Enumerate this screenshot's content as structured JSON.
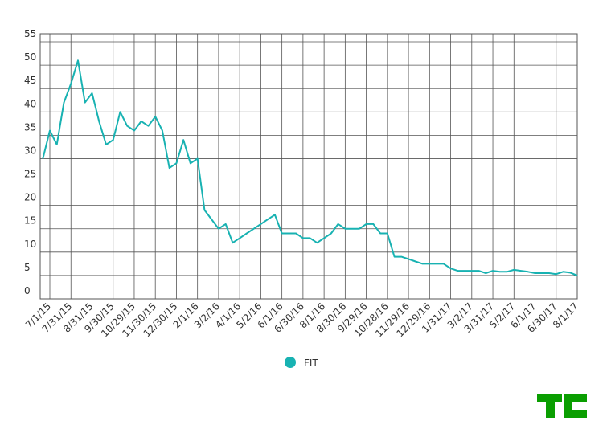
{
  "chart_data": {
    "type": "line",
    "categories": [
      null,
      "7/1/15",
      null,
      null,
      "7/31/15",
      null,
      null,
      "8/31/15",
      null,
      null,
      "9/30/15",
      null,
      null,
      "10/29/15",
      null,
      null,
      "11/30/15",
      null,
      null,
      "12/30/15",
      null,
      null,
      "2/1/16",
      null,
      null,
      "3/2/16",
      null,
      null,
      "4/1/16",
      null,
      null,
      "5/2/16",
      null,
      null,
      "6/1/16",
      null,
      null,
      "6/30/16",
      null,
      null,
      "8/1/16",
      null,
      null,
      "8/30/16",
      null,
      null,
      "9/29/16",
      null,
      null,
      "10/28/16",
      null,
      null,
      "11/29/16",
      null,
      null,
      "12/29/16",
      null,
      null,
      "1/31/17",
      null,
      null,
      "3/2/17",
      null,
      null,
      "3/31/17",
      null,
      null,
      "5/2/17",
      null,
      null,
      "6/1/17",
      null,
      null,
      "6/30/17",
      null,
      null,
      "8/1/17"
    ],
    "series": [
      {
        "name": "FIT",
        "color": "#18b2b2",
        "values": [
          30,
          36,
          33,
          42,
          46,
          51,
          42,
          44,
          38,
          33,
          34,
          40,
          37,
          36,
          38,
          37,
          39,
          36,
          28,
          29,
          34,
          29,
          30,
          19,
          17,
          15,
          16,
          12,
          13,
          14,
          15,
          16,
          17,
          18,
          14,
          14,
          14,
          13,
          13,
          12,
          13,
          14,
          16,
          15,
          15,
          15,
          16,
          16,
          14,
          14,
          9,
          9,
          8.5,
          8,
          7.5,
          7.5,
          7.5,
          7.5,
          6.5,
          6,
          6,
          6,
          6,
          5.5,
          6,
          5.8,
          5.8,
          6.2,
          6,
          5.8,
          5.5,
          5.5,
          5.5,
          5.3,
          5.8,
          5.6,
          5
        ]
      }
    ],
    "ylim": [
      0,
      55
    ],
    "yticks": [
      0,
      5,
      10,
      15,
      20,
      25,
      30,
      35,
      40,
      45,
      50,
      55
    ],
    "grid": true,
    "legend": "bottom"
  }
}
